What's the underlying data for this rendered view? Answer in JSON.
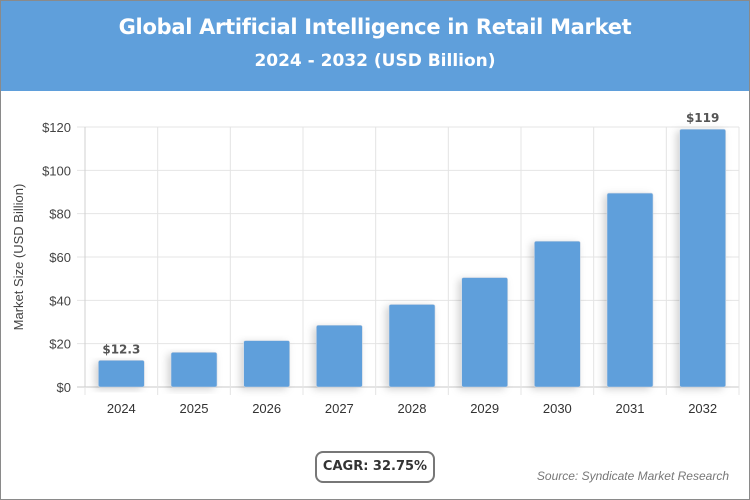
{
  "header": {
    "title": "Global Artificial Intelligence in Retail Market",
    "subtitle": "2024 - 2032 (USD Billion)",
    "background": "#5f9fdb"
  },
  "chart_data": {
    "type": "bar",
    "title": "Global Artificial Intelligence in Retail Market",
    "subtitle": "2024 - 2032 (USD Billion)",
    "xlabel": "",
    "ylabel": "Market Size (USD Billion)",
    "categories": [
      "2024",
      "2025",
      "2026",
      "2027",
      "2028",
      "2029",
      "2030",
      "2031",
      "2032"
    ],
    "values": [
      12.3,
      16.0,
      21.4,
      28.5,
      38.1,
      50.5,
      67.3,
      89.5,
      119
    ],
    "data_labels": {
      "0": "$12.3",
      "8": "$119"
    },
    "ylim": [
      0,
      120
    ],
    "yticks": [
      0,
      20,
      40,
      60,
      80,
      100,
      120
    ],
    "ytick_labels": [
      "$0",
      "$20",
      "$40",
      "$60",
      "$80",
      "$100",
      "$120"
    ],
    "grid": true,
    "bar_color": "#5f9fdb"
  },
  "footer": {
    "cagr": "CAGR: 32.75%",
    "source": "Source: Syndicate Market Research"
  }
}
